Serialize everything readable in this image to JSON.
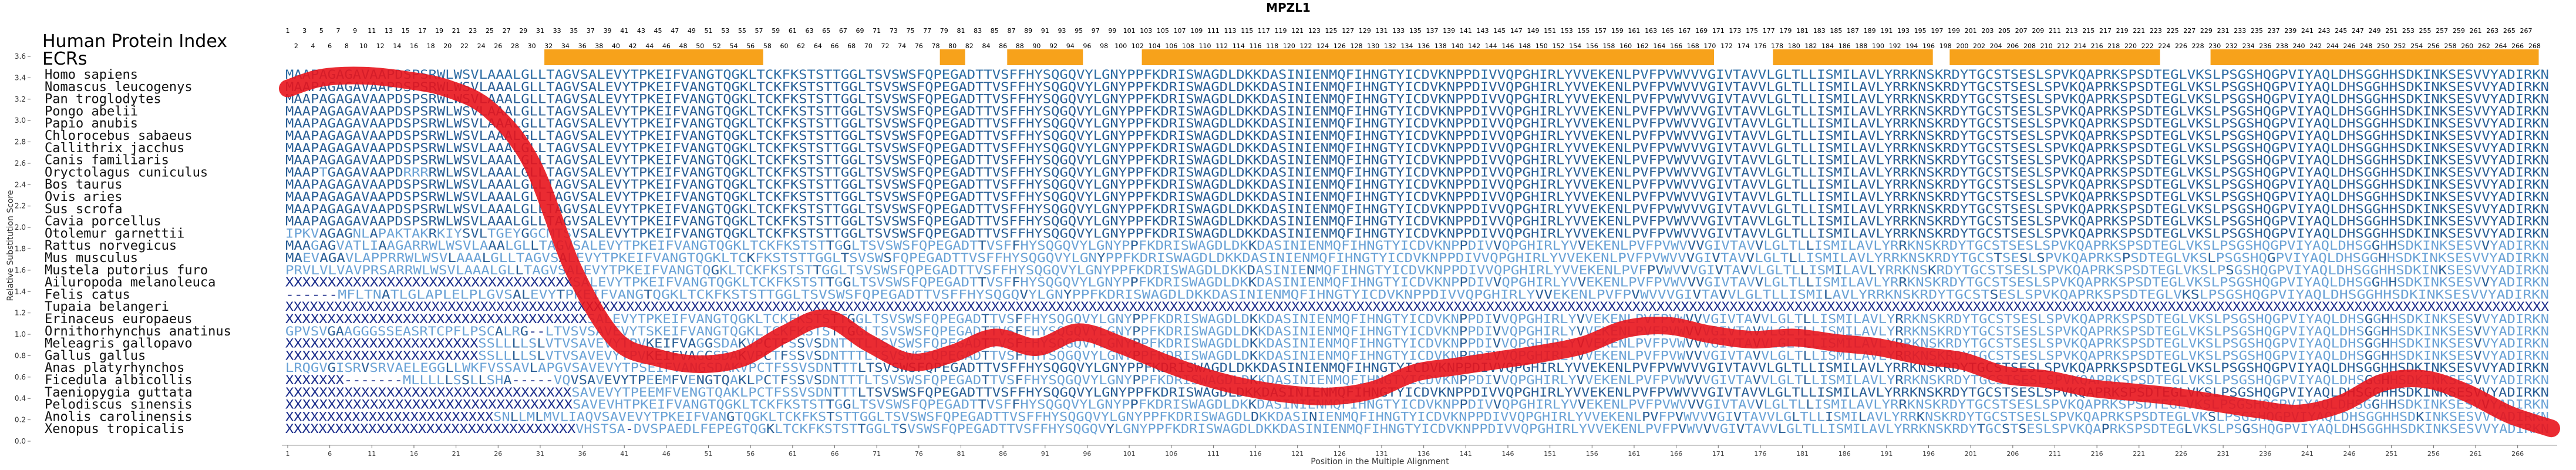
{
  "chart_data": {
    "type": "line",
    "title": "MPZL1",
    "panel_title": "Human Protein Index",
    "ecr_label": "ECRs",
    "xlabel": "Position in the Multiple Alignment",
    "ylabel": "Relative Substitution Score",
    "ylim": [
      0,
      3.6
    ],
    "yticks": [
      "0.0",
      "0.2",
      "0.4",
      "0.6",
      "0.8",
      "1.0",
      "1.2",
      "1.4",
      "1.6",
      "1.8",
      "2.0",
      "2.2",
      "2.4",
      "2.6",
      "2.8",
      "3.0",
      "3.2",
      "3.4",
      "3.6"
    ],
    "xlim": [
      1,
      270
    ],
    "xticks": [
      1,
      6,
      11,
      16,
      21,
      26,
      31,
      36,
      41,
      46,
      51,
      56,
      61,
      66,
      71,
      76,
      81,
      86,
      91,
      96,
      101,
      106,
      111,
      116,
      121,
      126,
      131,
      136,
      141,
      146,
      151,
      156,
      161,
      166,
      171,
      176,
      181,
      186,
      191,
      196,
      201,
      206,
      211,
      216,
      221,
      226,
      231,
      236,
      241,
      246,
      251,
      256,
      261,
      266
    ],
    "ecr_ranges": [
      [
        32,
        57
      ],
      [
        79,
        81
      ],
      [
        87,
        95
      ],
      [
        103,
        170
      ],
      [
        178,
        196
      ],
      [
        199,
        223
      ],
      [
        230,
        268
      ]
    ],
    "series": [
      {
        "name": "",
        "color": "#e8141c",
        "x": [
          1,
          5,
          10,
          15,
          20,
          25,
          30,
          35,
          40,
          45,
          50,
          55,
          60,
          65,
          70,
          75,
          80,
          85,
          90,
          95,
          100,
          105,
          110,
          115,
          120,
          125,
          130,
          135,
          140,
          145,
          150,
          155,
          160,
          165,
          170,
          175,
          180,
          185,
          190,
          195,
          200,
          205,
          210,
          215,
          220,
          225,
          230,
          235,
          240,
          245,
          250,
          255,
          260,
          265,
          270
        ],
        "y": [
          3.3,
          3.4,
          3.42,
          3.38,
          3.3,
          3.1,
          2.6,
          1.6,
          0.95,
          0.78,
          0.72,
          0.78,
          1.0,
          1.15,
          0.92,
          0.74,
          0.82,
          0.97,
          0.88,
          1.02,
          0.9,
          0.74,
          0.6,
          0.5,
          0.44,
          0.42,
          0.48,
          0.64,
          0.7,
          0.76,
          0.82,
          0.9,
          1.05,
          1.08,
          1.0,
          0.95,
          0.97,
          0.92,
          0.88,
          0.8,
          0.75,
          0.62,
          0.58,
          0.5,
          0.46,
          0.42,
          0.36,
          0.3,
          0.26,
          0.35,
          0.55,
          0.58,
          0.45,
          0.25,
          0.12
        ]
      }
    ],
    "species": [
      "Homo sapiens",
      "Nomascus leucogenys",
      "Pan troglodytes",
      "Pongo abelii",
      "Papio anubis",
      "Chlorocebus sabaeus",
      "Callithrix jacchus",
      "Canis familiaris",
      "Oryctolagus cuniculus",
      "Bos taurus",
      "Ovis aries",
      "Sus scrofa",
      "Cavia porcellus",
      "Otolemur garnettii",
      "Rattus norvegicus",
      "Mus musculus",
      "Mustela putorius furo",
      "Ailuropoda melanoleuca",
      "Felis catus",
      "Tupaia belangeri",
      "Erinaceus europaeus",
      "Ornithorhynchus anatinus",
      "Meleagris gallopavo",
      "Gallus gallus",
      "Anas platyrhynchos",
      "Ficedula albicollis",
      "Taeniopygia guttata",
      "Pelodiscus sinensis",
      "Anolis carolinensis",
      "Xenopus tropicalis"
    ],
    "sequences": [
      "MAAPAGAGAVAAPDSPSRWLWSVLAAALGLLTAGVSALEVYTPKEIFVANGTQGKLTCKFKSTSTTGGLTSVSWSFQPEGADTTVSFFHYSQGQVYLGNYPPFKDRISWAGDLDKKDASINIENMQFIHNGTYICDVKNPPDIVVQPGHIRLYVVEKENLPVFPVWVVVGIVTAVVLGLTLLISMILAVLYRRKNSKRDYTGCSTSESLSPVKQAPRKSPSDTEGLVKSLPSGSHQGPVIYAQLDHSGGHHSDKINKSESVVYADIRKN",
      "MAAPAGAGAVAAPDSPSRWLWSVLAAALGLLTAGVSALEVYTPKEIFVANGTQGKLTCKFKSTSTTGGLTSVSWSFQPEGADTTVSFFHYSQGQVYLGNYPPFKDRISWAGDLDKKDASINIENMQFIHNGTYICDVKNPPDIVVQPGHIRLYVVEKENLPVFPVWVVVGIVTAVVLGLTLLISMILAVLYRRKNSKRDYTGCSTSESLSPVKQAPRKSPSDTEGLVKSLPSGSHQGPVIYAQLDHSGGHHSDKINKSESVVYADIRKN",
      "MAAPAGAGAVAAPDSPSRWLWSVLAAALGLLTAGVSALEVYTPKEIFVANGTQGKLTCKFKSTSTTGGLTSVSWSFQPEGADTTVSFFHYSQGQVYLGNYPPFKDRISWAGDLDKKDASINIENMQFIHNGTYICDVKNPPDIVVQPGHIRLYVVEKENLPVFPVWVVVGIVTAVVLGLTLLISMILAVLYRRKNSKRDYTGCSTSESLSPVKQAPRKSPSDTEGLVKSLPSGSHQGPVIYAQLDHSGGHHSDKINKSESVVYADIRKN",
      "MAAPAGAGAVAAPDSPSRWLWSVLAAALGLLTAGVSALEVYTPKEIFVANGTQGKLTCKFKSTSTTGGLTSVSWSFQPEGADTTVSFFHYSQGQVYLGNYPPFKDRISWAGDLDKKDASINIENMQFIHNGTYICDVKNPPDIVVQPGHIRLYVVEKENLPVFPVWVVVGIVTAVVLGLTLLISMILAVLYRRKNSKRDYTGCSTSESLSPVKQAPRKSPSDTEGLVKSLPSGSHQGPVIYAQLDHSGGHHSDKINKSESVVYADIRKN",
      "MAAPAGAGAVAAPDSPSRWLWSVLAAALGLLTAGVSALEVYTPKEIFVANGTQGKLTCKFKSTSTTGGLTSVSWSFQPEGADTTVSFFHYSQGQVYLGNYPPFKDRISWAGDLDKKDASINIENMQFIHNGTYICDVKNPPDIVVQPGHIRLYVVEKENLPVFPVWVVVGIVTAVVLGLTLLISMILAVLYRRKNSKRDYTGCSTSESLSPVKQAPRKSPSDTEGLVKSLPSGSHQGPVIYAQLDHSGGHHSDKINKSESVVYADIRKN",
      "MAAPAGAGAVAAPDSPSRWLWSVLAAALGLLTAGVSALEVYTPKEIFVANGTQGKLTCKFKSTSTTGGLTSVSWSFQPEGADTTVSFFHYSQGQVYLGNYPPFKDRISWAGDLDKKDASINIENMQFIHNGTYICDVKNPPDIVVQPGHIRLYVVEKENLPVFPVWVVVGIVTAVVLGLTLLISMILAVLYRRKNSKRDYTGCSTSESLSPVKQAPRKSPSDTEGLVKSLPSGSHQGPVIYAQLDHSGGHHSDKINKSESVVYADIRKN",
      "MAAPAGAGAVAAPDSPSRWLWSVLAAALGLLTAGVSALEVYTPKEIFVANGTQGKLTCKFKSTSTTGGLTSVSWSFQPEGADTTVSFFHYSQGQVYLGNYPPFKDRISWAGDLDKKDASINIENMQFIHNGTYICDVKNPPDIVVQPGHIRLYVVEKENLPVFPVWVVVGIVTAVVLGLTLLISMILAVLYRRKNSKRDYTGCSTSESLSPVKQAPRKSPSDTEGLVKSLPSGSHQGPVIYAQLDHSGGHHSDKINKSESVVYADIRKN",
      "MAAPAGAGAVAAPDSPSRWLWSVLAAALGLLTAGVSALEVYTPKEIFVANGTQGKLTCKFKSTSTTGGLTSVSWSFQPEGADTTVSFFHYSQGQVYLGNYPPFKDRISWAGDLDKKDASINIENMQFIHNGTYICDVKNPPDIVVQPGHIRLYVVEKENLPVFPVWVVVGIVTAVVLGLTLLISMILAVLYRRKNSKRDYTGCSTSESLSPVKQAPRKSPSDTEGLVKSLPSGSHQGPVIYAQLDHSGGHHSDKINKSESVVYADIRKN",
      "MAAPTGAGAVAAPDRRRRWLWSVLAAALGLLTAGVSALEVYTPKEIFVANGTQGKLTCKFKSTSTTGGLTSVSWSFQPEGADTTVSFFHYSQGQVYLGNYPPFKDRISWAGDLDKKDASINIENMQFIHNGTYICDVKNPPDIVVQPGHIRLYVVEKENLPVFPVWVVVGIVTAVVLGLTLLISMILAVLYRRKNSKRDYTGCSTSESLSPVKQAPRKSPSDTEGLVKSLPSGSHQGPVIYAQLDHSGGHHSDKINKSESVVYADIRKN",
      "MAAPAGAGAVAAPDSPSRWLWSVLAAALGLLTAGVSALEVYTPKEIFVANGTQGKLTCKFKSTSTTGGLTSVSWSFQPEGADTTVSFFHYSQGQVYLGNYPPFKDRISWAGDLDKKDASINIENMQFIHNGTYICDVKNPPDIVVQPGHIRLYVVEKENLPVFPVWVVVGIVTAVVLGLTLLISMILAVLYRRKNSKRDYTGCSTSESLSPVKQAPRKSPSDTEGLVKSLPSGSHQGPVIYAQLDHSGGHHSDKINKSESVVYADIRKN",
      "MAAPAGAGAVAAPDSPSRWLWSVLAAALGLLTAGVSALEVYTPKEIFVANGTQGKLTCKFKSTSTTGGLTSVSWSFQPEGADTTVSFFHYSQGQVYLGNYPPFKDRISWAGDLDKKDASINIENMQFIHNGTYICDVKNPPDIVVQPGHIRLYVVEKENLPVFPVWVVVGIVTAVVLGLTLLISMILAVLYRRKNSKRDYTGCSTSESLSPVKQAPRKSPSDTEGLVKSLPSGSHQGPVIYAQLDHSGGHHSDKINKSESVVYADIRKN",
      "MAAPAGAGAVAAPDSPSRWLWSVLAAALGLLTAGVSALEVYTPKEIFVANGTQGKLTCKFKSTSTTGGLTSVSWSFQPEGADTTVSFFHYSQGQVYLGNYPPFKDRISWAGDLDKKDASINIENMQFIHNGTYICDVKNPPDIVVQPGHIRLYVVEKENLPVFPVWVVVGIVTAVVLGLTLLISMILAVLYRRKNSKRDYTGCSTSESLSPVKQAPRKSPSDTEGLVKSLPSGSHQGPVIYAQLDHSGGHHSDKINKSESVVYADIRKN",
      "MAAPAGAGAVAAPDSPSRWLWSVLAAALGLLTAGVSALEVYTPKEIFVANGTQGKLTCKFKSTSTTGGLTSVSWSFQPEGADTTVSFFHYSQGQVYLGNYPPFKDRISWAGDLDKKDASINIENMQFIHNGTYICDVKNPPDIVVQPGHIRLYVVEKENLPVFPVWVVVGIVTAVVLGLTLLISMILAVLYRRKNSKRDYTGCSTSESLSPVKQAPRKSPSDTEGLVKSLPSGSHQGPVIYAQLDHSGGHHSDKINKSESVVYADIRKN",
      "IPKVAGAGNLAPAKTAKRKIYSVLTGEYGGCMTSVSALEVYTPKEIFVANGTQGKLTCKFKSTSTTGGLTSVSWSFQPEGADTTVSFFHYSQGQVYLGNYPPFKDRISWAGDLDKKDASINIENMQFIHNGTYICDVKNPPDIVVQPGHIRLYVVEKENLPVFPVWVVVGIVTAVVLGLTLLISMILAVLYRRKNSKRDYTGCSTSESLSPVKQAPRKSPSDTEGLVKSLPSGSHQGPVIYAQLDHSGGHHSDKINKSESVVYADIRKN",
      "MAAGAGVATLIAAGARRWLWSVLAAALGLLTAGVSALEVYTPKEIFVANGTQGKLTCKFKSTSTTGGLTSVSWSFQPEGADTTVSFFHYSQGQVYLGNYPPFKDRISWAGDLDKKDASINIENMQFIHNGTYICDVKNPPDIVVQPGHIRLYVVEKENLPVFPVWVVVGIVTAVVLGLTLLISMILAVLYRRKNSKRDYTGCSTSESLSPVKQAPRKSPSDTEGLVKSLPSGSHQGPVIYAQLDHSGGHHSDKINKSESVVYADIRKN",
      "MAEVAGAVLAPPRRWLWSVLAAALGLLTAGVSALEVYTPKEIFVANGTQGKLTCKFKSTSTTGGLTSVSWSFQPEGADTTVSFFHYSQGQVYLGNYPPFKDRISWAGDLDKKDASINIENMQFIHNGTYICDVKNPPDIVVQPGHIRLYVVEKENLPVFPVWVVVGIVTAVVLGLTLLISMILAVLYRRKNSKRDYTGCSTSESLSPVKQAPRKSPSDTEGLVKSLPSGSHQGPVIYAQLDHSGGHHSDKINKSESVVYADIRKN",
      "PRVLVLVAVPRSARRWLWSVLAAALGLLTAGVSALEVYTPKEIFVANGTQGKLTCKFKSTSTTGGLTSVSWSFQPEGADTTVSFFHYSQGQVYLGNYPPFKDRISWAGDLDKKDASINIENMQFIHNGTYICDVKNPPDIVVQPGHIRLYVVEKENLPVFPVWVVVGIVTAVVLGLTLLISMILAVLYRRKNSKRDYTGCSTSESLSPVKQAPRKSPSDTEGLVKSLPSGSHQGPVIYAQLDHSGGHHSDKINKSESVVYADIRKN",
      "XXXXXXXXXXXXXXXXXXXXXXXXXXXXXXXXXXSALEVYTPKEIFVANGTQGKLTCKFKSTSTTGGLTSVSWSFQPEGADTTVSFFHYSQGQVYLGNYPPFKDRISWAGDLDKKDASINIENMQFIHNGTYICDVKNPPDIVVQPGHIRLYVVEKENLPVFPVWVVVGIVTAVVLGLTLLISMILAVLYRRKNSKRDYTGCSTSESLSPVKQAPRKSPSDTEGLVKSLPSGSHQGPVIYAQLDHSGGHHSDKINKSESVVYADIRKN",
      "------MFLTNATLGLAPLELPLGVSALEVYTPKEIFVANGTQGKLTCKFKSTSTTGGLTSVSWSFQPEGADTTVSFFHYSQGQVYLGNYPPFKDRISWAGDLDKKDASINIENMQFIHNGTYICDVKNPPDIVVQPGHIRLYVVEKENLPVFPVWVVVGIVTAVVLGLTLLISMILAVLYRRKNSKRDYTGCSTSESLSPVKQAPRKSPSDTEGLVKSLPSGSHQGPVIYAQLDHSGGHHSDKINKSESVVYADIRKN",
      "XXXXXXXXXXXXXXXXXXXXXXXXXXXXXXXXXXXXXXXXXXXXXXXXXXXXXXXXXXXXXXXXXXXXXXXXXXXXXXXXXXXXXXXXXXXXXXXXXXXXXXXXXXXXXXXXXXXXXXXXXXXXXXXXXXXXXXXXXXXXXXXXXXXXXXXXXXXXXXXXXXXXXXXXXXXXXXXXXXXXXXXXXXXXXXXXXXXXXXXXXXXXXXXXXXXXXXXXXXXXXXXXXXXXXXXXXXXXXXXXXXXXXXXXXXXXXXXXXXXXXXXXXXXXXXXXXXXXXXX",
      "XXXXXXXXXXXXXXXXXXXXXXXXXXXXXXXXXXXXSALEVYTPKEIFVANGTQGKLTCKFKSTSTTGGLTSVSWSFQPEGADTTVSFFHYSQGQVYLGNYPPFKDRISWAGDLDKKDASINIENMQFIHNGTYICDVKNPPDIVVQPGHIRLYVVEKENLPVFPVWVVVGIVTAVVLGLTLLISMILAVLYRRKNSKRDYTGCSTSESLSPVKQAPRKSPSDTEGLVKSLPSGSHQGPVIYAQLDHSGGHHSDKINKSESVVYADIRKN",
      "GPVSVGAAGGGSSEASRTCPFLPSCALRG--LTVSVSAVEVYTSKEIFVANGTQGKLTCKFKSTSTTGGLTSVSWSFQPEGADTTVSFFHYSQGQVYLGNYPPFKDRISWAGDLDKKDASINIENMQFIHNGTYICDVKNPPDIVVQPGHIRLYVVEKENLPVFPVWVVVGIVTAVVLGLTLLISMILAVLYRRKNSKRDYTGCSTSESLSPVKQAPRKSPSDTEGLVKSLPSGSHQGPVIYAQLDHSGGHHSDKINKSESVVYADIRKN",
      "XXXXXXXXXXXXXXXXXXXXXXXSSLLLLSLVTVSAVEVYTPVKEIFVAGGSDAKVPCTFSSVSDNTTTLTSVSWSFQPEGADTTVSFFHYSQGQVYLGNYPPFKDRISWAGDLDKKDASINIENMQFIHNGTYICDVKNPPDIVVQPGHIRLYVVEKENLPVFPVWVVVGIVTAVVLGLTLLISMILAVLYRRKNSKRDYTGCSTSESLSPVKQAPRKSPSDTEGLVKSLPSGSHQGPVIYAQLDHSGGHHSDKINKSESVVYADIRKN",
      "XXXXXXXXXXXXXXXXXXXXXXXSSLLLLSLVTVSAVEVYTPVKEIFVAGGSDAKVPCTFSSVSDNTTTLTSVSWSFQPEGADTTVSFFHYSQGQVYLGNYPPFKDRISWAGDLDKKDASINIENMQFIHNGTYICDVKNPPDIVVQPGHIRLYVVEKENLPVFPVWVVVGIVTAVVLGLTLLISMILAVLYRRKNSKRDYTGCSTSESLSPVKQAPRKSPSDTEGLVKSLPSGSHQGPVIYAQLDHSGGHHSDKINKSESVVYADIRKN",
      "LRQGVGISRVSRVAELEGGLLWKFVSSAVLAPGVSAVEVYTPSEIFVANGSDAKVPCTFSSVSDNTTTLTSVSWSFQPEGADTTVSFFHYSQGQVYLGNYPPFKDRISWAGDLDKKDASINIENMQFIHNGTYICDVKNPPDIVVQPGHIRLYVVEKENLPVFPVWVVVGIVTAVVLGLTLLISMILAVLYRRKNSKRDYTGCSTSESLSPVKQAPRKSPSDTEGLVKSLPSGSHQGPVIYAQLDHSGGHHSDKINKSESVVYADIRKN",
      "XXXXXXX-------MLLLLLSSLLSHA-----VQVSAVEVYTPEEMFVENGTQAKLPCTFSSVSDNTTTLTSVSWSFQPEGADTTVSFFHYSQGQVYLGNYPPFKDRISWAGDLDKKDASINIENMQFIHNGTYICDVKNPPDIVVQPGHIRLYVVEKENLPVFPVWVVVGIVTAVVLGLTLLISMILAVLYRRKNSKRDYTGCSTSESLSPVKQAPRKSPSDTEGLVKSLPSGSHQGPVIYAQLDHSGGHHSDKINKSESVVYADIRKN",
      "XXXXXXXXXXXXXXXXXXXXXXXXXXXXXXXXXXSAVEVYTPEEMFVENGTQAKLPCTFSSVSDNTTTLTSVSWSFQPEGADTTVSFFHYSQGQVYLGNYPPFKDRISWAGDLDKKDASINIENMQFIHNGTYICDVKNPPDIVVQPGHIRLYVVEKENLPVFPVWVVVGIVTAVVLGLTLLISMILAVLYRRKNSKRDYTGCSTSESLSPVKQAPRKSPSDTEGLVKSLPSGSHQGPVIYAQLDHSGGHHSDKINKSESVVYADIRKN",
      "XXXXXXXXXXXXXXXXXXXXXXXXXXXXXXXXXXSAVEVHTPKEIFVANGTQGKLTCKFKSTSTTGGLTSVSWSFQPEGADTTVSFFHYSQGQVYLGNYPPFKDRISWAGDLDKKDASINIENMQFIHNGTYICDVKNPPDIVVQPGHIRLYVVEKENLPVFPVWVVVGIVTAVVLGLTLLISMILAVLYRRKNSKRDYTGCSTSESLSPVKQAPRKSPSDTEGLVKSLPSGSHQGPVIYAQLDHSGGHHSDKINKSESVVYADIRKN",
      "XXXXXXXXXXXXXXXXXXXXXXXXXSNLLMLMVLIAQVSAVEVYTPKEIFVANGTQGKLTCKFKSTSTTGGLTSVSWSFQPEGADTTVSFFHYSQGQVYLGNYPPFKDRISWAGDLDKKDASINIENMQFIHNGTYICDVKNPPDIVVQPGHIRLYVVEKENLPVFPVWVVVGIVTAVVLGLTLLISMILAVLYRRKNSKRDYTGCSTSESLSPVKQAPRKSPSDTEGLVKSLPSGSHQGPVIYAQLDHSGGHHSDKINKSESVVYADIRKN",
      "XXXXXXXXXXXXXXXXXXXXXXXXXXXXXXXXXXXVHSTSA-DVSPAEDLFEPEGTQGKLTCKFKSTSTTGGLTSVSWSFQPEGADTTVSFFHYSQGQVYLGNYPPFKDRISWAGDLDKKDASINIENMQFIHNGTYICDVKNPPDIVVQPGHIRLYVVEKENLPVFPVWVVVGIVTAVVLGLTLLISMILAVLYRRKNSKRDYTGCSTSESLSPVKQAPRKSPSDTEGLVKSLPSGSHQGPVIYAQLDHSGGHHSDKINKSESVVYADIRKN"
    ]
  }
}
